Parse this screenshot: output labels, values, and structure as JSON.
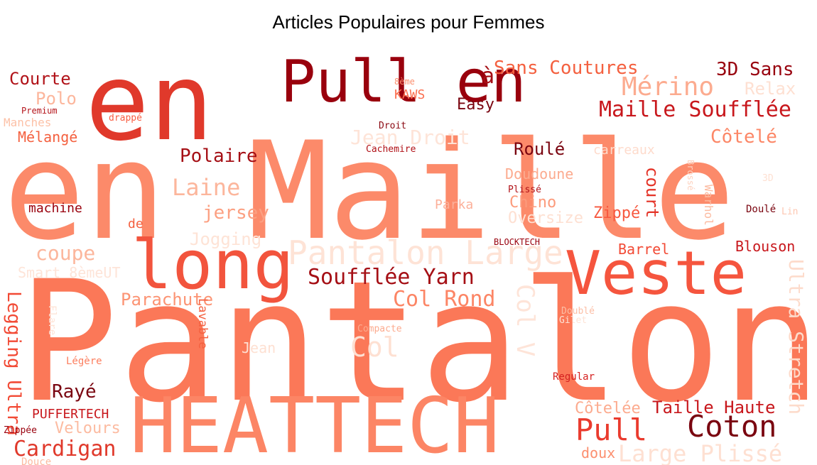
{
  "title": "Articles Populaires pour Femmes",
  "words": [
    {
      "text": "Pantalon",
      "color": "#fb7858"
    },
    {
      "text": "en Maille",
      "color": "#fc8a6a"
    },
    {
      "text": "en",
      "color": "#e0392b"
    },
    {
      "text": "HEATTECH",
      "color": "#fc8565"
    },
    {
      "text": "Pull en",
      "color": "#99000d"
    },
    {
      "text": "long",
      "color": "#f2543d"
    },
    {
      "text": "Veste",
      "color": "#f5553e"
    },
    {
      "text": "Pantalon Large",
      "color": "#fee3d6"
    },
    {
      "text": "Coton",
      "color": "#7a0510"
    },
    {
      "text": "Pull",
      "color": "#ea3b2e"
    },
    {
      "text": "Mérino",
      "color": "#fcab8f"
    },
    {
      "text": "Maille Soufflée",
      "color": "#c8171c"
    },
    {
      "text": "Sans Coutures",
      "color": "#f4603f"
    },
    {
      "text": "3D Sans",
      "color": "#98020e"
    },
    {
      "text": "Relax",
      "color": "#fee0d2"
    },
    {
      "text": "Courte",
      "color": "#b11218"
    },
    {
      "text": "Polo",
      "color": "#fcb69c"
    },
    {
      "text": "Premium",
      "color": "#b5141b"
    },
    {
      "text": "Manches",
      "color": "#fcc1a7"
    },
    {
      "text": "Mélangé",
      "color": "#f4603f"
    },
    {
      "text": "drappé",
      "color": "#f85d42"
    },
    {
      "text": "8ème",
      "color": "#fc8f6f"
    },
    {
      "text": "KAWS",
      "color": "#fb6f50"
    },
    {
      "text": "à",
      "color": "#a50f15"
    },
    {
      "text": "Easy",
      "color": "#7a0510"
    },
    {
      "text": "Droit",
      "color": "#8b0a13"
    },
    {
      "text": "Cachemire",
      "color": "#b11218"
    },
    {
      "text": "Jean Droit",
      "color": "#fee4d8"
    },
    {
      "text": "Côtelé",
      "color": "#fc8767"
    },
    {
      "text": "Roulé",
      "color": "#7a0510"
    },
    {
      "text": "carreaux",
      "color": "#fedbcc"
    },
    {
      "text": "Polaire",
      "color": "#a50f15"
    },
    {
      "text": "Laine",
      "color": "#fcb69c"
    },
    {
      "text": "Doudoune",
      "color": "#fcab8f"
    },
    {
      "text": "court",
      "color": "#e43327"
    },
    {
      "text": "Brossé",
      "color": "#fdd1be"
    },
    {
      "text": "Plissé",
      "color": "#b11218"
    },
    {
      "text": "3D",
      "color": "#fee0d2"
    },
    {
      "text": "Chino",
      "color": "#fc9b7c"
    },
    {
      "text": "Parka",
      "color": "#fcb09a"
    },
    {
      "text": "Warhol",
      "color": "#fcbba1"
    },
    {
      "text": "jersey",
      "color": "#fca082"
    },
    {
      "text": "machine",
      "color": "#99000d"
    },
    {
      "text": "Oversize",
      "color": "#fee0d2"
    },
    {
      "text": "Zippé",
      "color": "#f7583f"
    },
    {
      "text": "Doulé",
      "color": "#7a0510"
    },
    {
      "text": "Lin",
      "color": "#fdc7b2"
    },
    {
      "text": "de",
      "color": "#f4603f"
    },
    {
      "text": "Jogging",
      "color": "#fee3d6"
    },
    {
      "text": "BLOCKTECH",
      "color": "#99000d"
    },
    {
      "text": "Barrel",
      "color": "#f24a35"
    },
    {
      "text": "Blouson",
      "color": "#c8171c"
    },
    {
      "text": "coupe",
      "color": "#fcb69c"
    },
    {
      "text": "Smart 8èmeUT",
      "color": "#fee4d8"
    },
    {
      "text": "Soufflée Yarn",
      "color": "#a50f15"
    },
    {
      "text": "Col Rond",
      "color": "#fc8565"
    },
    {
      "text": "Col V",
      "color": "#fee4d8"
    },
    {
      "text": "Ultra Stretch",
      "color": "#fddbcb"
    },
    {
      "text": "Legging Ultra",
      "color": "#f24a35"
    },
    {
      "text": "Parachute",
      "color": "#fc9474"
    },
    {
      "text": "Lavable",
      "color": "#f4603f"
    },
    {
      "text": "Flare",
      "color": "#fee3d6"
    },
    {
      "text": "Compacte",
      "color": "#fcab8f"
    },
    {
      "text": "Doublé",
      "color": "#fcbea5"
    },
    {
      "text": "Gilet",
      "color": "#fee3d6"
    },
    {
      "text": "Jean",
      "color": "#fee0d2"
    },
    {
      "text": "Col",
      "color": "#fee0d2"
    },
    {
      "text": "Légère",
      "color": "#fc7e5e"
    },
    {
      "text": "Regular",
      "color": "#d52221"
    },
    {
      "text": "Rayé",
      "color": "#7a0510"
    },
    {
      "text": "PUFFERTECH",
      "color": "#c8171c"
    },
    {
      "text": "Zippée",
      "color": "#99000d"
    },
    {
      "text": "Velours",
      "color": "#fcbba1"
    },
    {
      "text": "Cardigan",
      "color": "#e0392b"
    },
    {
      "text": "Douce",
      "color": "#fcbba1"
    },
    {
      "text": "Côtelée",
      "color": "#fcab8f"
    },
    {
      "text": "Taille Haute",
      "color": "#c8171c"
    },
    {
      "text": "doux",
      "color": "#fc8f6f"
    },
    {
      "text": "Large Plissé",
      "color": "#fee0d2"
    }
  ]
}
